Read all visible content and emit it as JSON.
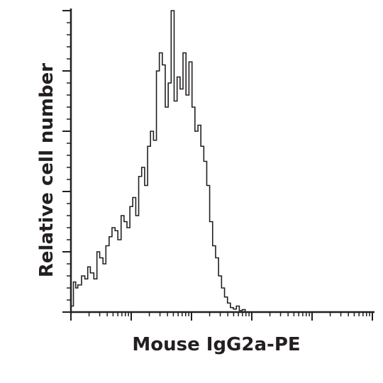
{
  "chart_data": {
    "type": "histogram",
    "title": "",
    "xlabel": "Mouse IgG2a-PE",
    "ylabel": "Relative cell number",
    "x_scale": "log",
    "xlim": [
      1,
      100000
    ],
    "ylim": [
      0,
      100
    ],
    "x_tick_labels": [],
    "y_tick_labels": [],
    "grid": false,
    "legend": "none",
    "line_color": "#231f20",
    "series": [
      {
        "x": [
          1.0,
          1.1,
          1.2,
          1.3,
          1.5,
          1.7,
          1.9,
          2.1,
          2.4,
          2.7,
          3.0,
          3.4,
          3.8,
          4.3,
          4.8,
          5.4,
          6.0,
          6.8,
          7.6,
          8.5,
          9.5,
          10.6,
          11.9,
          13.3,
          14.9,
          16.7,
          18.7,
          20.9,
          23.4,
          26.2,
          29.3,
          32.8,
          36.7,
          41.1,
          46.0,
          51.5,
          57.7,
          64.6,
          72.3,
          81.0,
          90.7,
          102,
          114,
          128,
          143,
          160,
          179,
          200,
          224,
          251,
          281,
          315,
          353,
          395,
          442,
          495,
          555,
          621,
          695,
          778
        ],
        "y": [
          2,
          10,
          8,
          9,
          12,
          11,
          15,
          13,
          11,
          20,
          18,
          16,
          22,
          25,
          28,
          27,
          24,
          32,
          30,
          28,
          35,
          38,
          32,
          45,
          48,
          42,
          55,
          60,
          57,
          80,
          86,
          82,
          68,
          76,
          100,
          70,
          78,
          74,
          86,
          72,
          83,
          68,
          60,
          62,
          55,
          50,
          42,
          30,
          22,
          18,
          12,
          8,
          5,
          3,
          1.5,
          1,
          2,
          0.5,
          0.8,
          0
        ]
      }
    ]
  }
}
